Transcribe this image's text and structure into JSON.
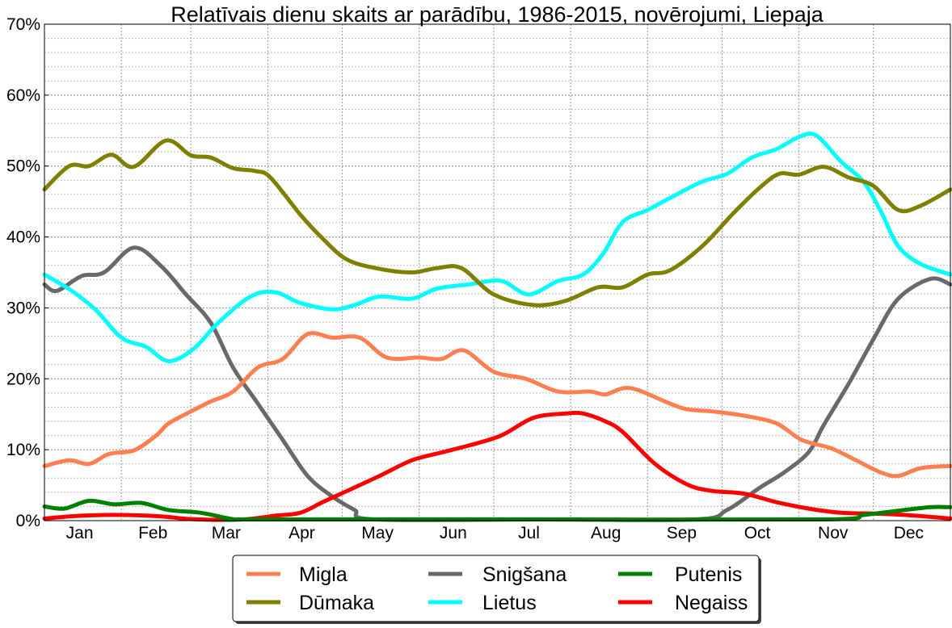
{
  "chart_data": {
    "type": "line",
    "title": "Relatīvais dienu skaits ar parādību, 1986-2015, novērojumi, Liepaja",
    "xlabel": "",
    "ylabel": "",
    "xunit": "day of year",
    "xlim": [
      0,
      365
    ],
    "ylim": [
      0,
      70
    ],
    "grid": true,
    "legend_position": "bottom-center",
    "yticks": [
      0,
      10,
      20,
      30,
      40,
      50,
      60,
      70
    ],
    "ytick_labels": [
      "0%",
      "10%",
      "20%",
      "30%",
      "40%",
      "50%",
      "60%",
      "70%"
    ],
    "xtick_labels": [
      "Jan",
      "Feb",
      "Mar",
      "Apr",
      "May",
      "Jun",
      "Jul",
      "Aug",
      "Sep",
      "Oct",
      "Nov",
      "Dec"
    ],
    "series": [
      {
        "name": "Migla",
        "color": "#ff7f50",
        "points": [
          [
            0,
            7.7
          ],
          [
            10,
            8.5
          ],
          [
            18,
            8
          ],
          [
            26,
            9.4
          ],
          [
            36,
            9.9
          ],
          [
            45,
            12
          ],
          [
            50,
            13.7
          ],
          [
            59,
            15.4
          ],
          [
            67,
            16.8
          ],
          [
            76,
            18.2
          ],
          [
            86,
            21.6
          ],
          [
            96,
            22.8
          ],
          [
            106,
            26.3
          ],
          [
            116,
            25.8
          ],
          [
            127,
            25.8
          ],
          [
            138,
            23
          ],
          [
            151,
            23
          ],
          [
            160,
            22.8
          ],
          [
            169,
            24
          ],
          [
            181,
            21
          ],
          [
            194,
            20
          ],
          [
            207,
            18.2
          ],
          [
            220,
            18.2
          ],
          [
            226,
            17.8
          ],
          [
            236,
            18.7
          ],
          [
            252,
            16.5
          ],
          [
            259,
            15.7
          ],
          [
            269,
            15.4
          ],
          [
            282,
            14.8
          ],
          [
            295,
            13.7
          ],
          [
            305,
            11.4
          ],
          [
            317,
            10.2
          ],
          [
            327,
            8.5
          ],
          [
            337,
            6.8
          ],
          [
            344,
            6.3
          ],
          [
            353,
            7.4
          ],
          [
            365,
            7.7
          ]
        ]
      },
      {
        "name": "Dūmaka",
        "color": "#808000",
        "points": [
          [
            0,
            46.7
          ],
          [
            10,
            50
          ],
          [
            18,
            50
          ],
          [
            27,
            51.6
          ],
          [
            36,
            49.9
          ],
          [
            49,
            53.6
          ],
          [
            59,
            51.5
          ],
          [
            67,
            51.2
          ],
          [
            76,
            49.7
          ],
          [
            85,
            49.3
          ],
          [
            91,
            48.4
          ],
          [
            103,
            43.2
          ],
          [
            112,
            39.8
          ],
          [
            122,
            36.8
          ],
          [
            135,
            35.5
          ],
          [
            148,
            35
          ],
          [
            158,
            35.6
          ],
          [
            168,
            35.6
          ],
          [
            181,
            31.9
          ],
          [
            197,
            30.4
          ],
          [
            210,
            31
          ],
          [
            223,
            32.9
          ],
          [
            233,
            32.9
          ],
          [
            243,
            34.7
          ],
          [
            252,
            35.3
          ],
          [
            265,
            38.7
          ],
          [
            278,
            43.5
          ],
          [
            288,
            46.9
          ],
          [
            296,
            48.9
          ],
          [
            304,
            48.8
          ],
          [
            314,
            49.9
          ],
          [
            324,
            48.4
          ],
          [
            334,
            47.2
          ],
          [
            344,
            43.8
          ],
          [
            353,
            44.4
          ],
          [
            365,
            46.7
          ]
        ]
      },
      {
        "name": "Snigšana",
        "color": "#696969",
        "points": [
          [
            0,
            33.3
          ],
          [
            5,
            32.4
          ],
          [
            15,
            34.5
          ],
          [
            24,
            35
          ],
          [
            36,
            38.5
          ],
          [
            47,
            35.9
          ],
          [
            57,
            31.9
          ],
          [
            67,
            27.9
          ],
          [
            76,
            21.6
          ],
          [
            86,
            16.5
          ],
          [
            96,
            11.4
          ],
          [
            106,
            6.3
          ],
          [
            116,
            3.4
          ],
          [
            125,
            1.5
          ],
          [
            133,
            0
          ],
          [
            200,
            0
          ],
          [
            262,
            0
          ],
          [
            275,
            1.5
          ],
          [
            288,
            4.6
          ],
          [
            298,
            6.8
          ],
          [
            308,
            9.7
          ],
          [
            314,
            13.5
          ],
          [
            324,
            19.3
          ],
          [
            334,
            25.6
          ],
          [
            344,
            31.3
          ],
          [
            357,
            34.1
          ],
          [
            365,
            33.3
          ]
        ]
      },
      {
        "name": "Lietus",
        "color": "#00ffff",
        "points": [
          [
            0,
            34.7
          ],
          [
            11,
            32.4
          ],
          [
            21,
            29.6
          ],
          [
            31,
            25.8
          ],
          [
            41,
            24.5
          ],
          [
            50,
            22.5
          ],
          [
            60,
            24.2
          ],
          [
            70,
            27.9
          ],
          [
            83,
            31.6
          ],
          [
            93,
            32.2
          ],
          [
            103,
            30.7
          ],
          [
            116,
            29.8
          ],
          [
            125,
            30.4
          ],
          [
            135,
            31.6
          ],
          [
            148,
            31.3
          ],
          [
            158,
            32.7
          ],
          [
            171,
            33.3
          ],
          [
            184,
            33.8
          ],
          [
            195,
            31.9
          ],
          [
            207,
            33.8
          ],
          [
            217,
            34.7
          ],
          [
            225,
            37.6
          ],
          [
            233,
            42.1
          ],
          [
            243,
            43.8
          ],
          [
            252,
            45.5
          ],
          [
            265,
            47.8
          ],
          [
            275,
            48.9
          ],
          [
            285,
            51.2
          ],
          [
            295,
            52.4
          ],
          [
            304,
            54.1
          ],
          [
            311,
            54.3
          ],
          [
            321,
            50.6
          ],
          [
            330,
            47.8
          ],
          [
            337,
            43.6
          ],
          [
            344,
            38.7
          ],
          [
            353,
            36.2
          ],
          [
            365,
            34.7
          ]
        ]
      },
      {
        "name": "Putenis",
        "color": "#008000",
        "points": [
          [
            0,
            2
          ],
          [
            8,
            1.7
          ],
          [
            18,
            2.8
          ],
          [
            28,
            2.3
          ],
          [
            39,
            2.5
          ],
          [
            50,
            1.5
          ],
          [
            63,
            1.1
          ],
          [
            76,
            0.2
          ],
          [
            83,
            0
          ],
          [
            200,
            0
          ],
          [
            314,
            0
          ],
          [
            330,
            0.8
          ],
          [
            344,
            1.4
          ],
          [
            357,
            1.9
          ],
          [
            365,
            1.9
          ]
        ]
      },
      {
        "name": "Negaiss",
        "color": "#ff0000",
        "points": [
          [
            0,
            0.3
          ],
          [
            15,
            0.7
          ],
          [
            31,
            0.8
          ],
          [
            47,
            0.6
          ],
          [
            60,
            0.2
          ],
          [
            80,
            0.1
          ],
          [
            93,
            0.7
          ],
          [
            103,
            1.1
          ],
          [
            112,
            2.6
          ],
          [
            122,
            4.2
          ],
          [
            135,
            6.3
          ],
          [
            148,
            8.5
          ],
          [
            161,
            9.7
          ],
          [
            171,
            10.6
          ],
          [
            184,
            12
          ],
          [
            197,
            14.5
          ],
          [
            210,
            15.1
          ],
          [
            217,
            15.1
          ],
          [
            226,
            14
          ],
          [
            233,
            12.5
          ],
          [
            246,
            8
          ],
          [
            259,
            5.1
          ],
          [
            269,
            4.2
          ],
          [
            282,
            3.8
          ],
          [
            295,
            2.6
          ],
          [
            308,
            1.7
          ],
          [
            321,
            1.1
          ],
          [
            334,
            1
          ],
          [
            347,
            0.8
          ],
          [
            365,
            0.3
          ]
        ]
      }
    ],
    "legend_order": [
      "Migla",
      "Snigšana",
      "Putenis",
      "Dūmaka",
      "Lietus",
      "Negaiss"
    ]
  }
}
